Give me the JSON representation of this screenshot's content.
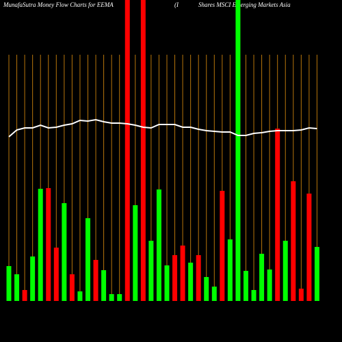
{
  "chart_data": {
    "type": "bar",
    "title": "MunafaSutra  Money Flow  Charts for EEMA",
    "subtitle": "(I",
    "subtitle2": "Shares MSCI Emerging Markets Asia",
    "values": [
      51,
      39,
      16,
      65,
      164,
      165,
      78,
      143,
      39,
      14,
      121,
      60,
      45,
      10,
      10,
      440,
      140,
      440,
      88,
      163,
      52,
      67,
      81,
      56,
      67,
      35,
      21,
      161,
      90,
      440,
      44,
      16,
      69,
      46,
      252,
      88,
      175,
      18,
      157,
      79
    ],
    "colors": [
      "#00ff00",
      "#00ff00",
      "#ff0000",
      "#00ff00",
      "#00ff00",
      "#ff0000",
      "#ff0000",
      "#00ff00",
      "#ff0000",
      "#00ff00",
      "#00ff00",
      "#ff0000",
      "#00ff00",
      "#00ff00",
      "#00ff00",
      "#ff0000",
      "#00ff00",
      "#ff0000",
      "#00ff00",
      "#00ff00",
      "#00ff00",
      "#ff0000",
      "#ff0000",
      "#00ff00",
      "#ff0000",
      "#00ff00",
      "#00ff00",
      "#ff0000",
      "#00ff00",
      "#00ff00",
      "#00ff00",
      "#00ff00",
      "#00ff00",
      "#00ff00",
      "#ff0000",
      "#00ff00",
      "#ff0000",
      "#ff0000",
      "#ff0000",
      "#00ff00"
    ],
    "line": {
      "color": "#ffffff",
      "values": [
        240,
        250,
        253,
        253,
        257,
        253,
        254,
        257,
        259,
        264,
        263,
        265,
        262,
        260,
        260,
        259,
        257,
        254,
        253,
        258,
        258,
        258,
        254,
        254,
        251,
        249,
        248,
        247,
        247,
        242,
        242,
        245,
        246,
        248,
        249,
        249,
        249,
        250,
        253,
        252
      ]
    },
    "ylim": [
      0,
      440
    ],
    "gridline_color": "#b8760b"
  }
}
